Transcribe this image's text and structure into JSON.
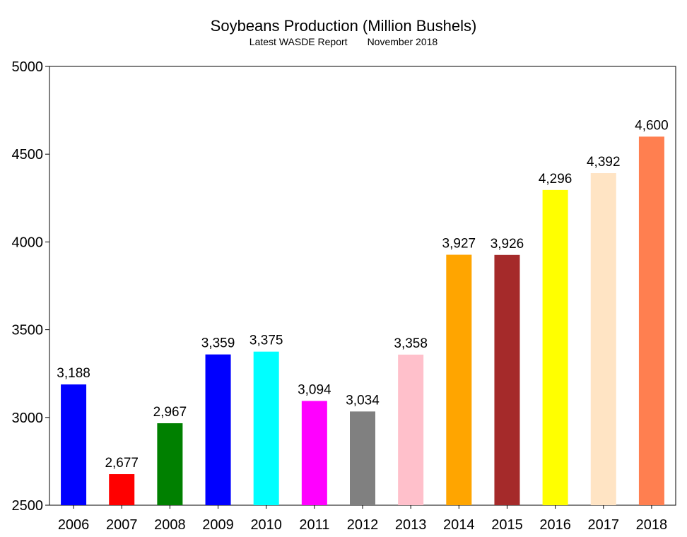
{
  "chart_data": {
    "type": "bar",
    "title": "Soybeans Production (Million Bushels)",
    "subtitle_left": "Latest WASDE Report",
    "subtitle_right": "November 2018",
    "xlabel": "",
    "ylabel": "",
    "ylim": [
      2500,
      5000
    ],
    "yticks": [
      2500,
      3000,
      3500,
      4000,
      4500,
      5000
    ],
    "grid": false,
    "categories": [
      "2006",
      "2007",
      "2008",
      "2009",
      "2010",
      "2011",
      "2012",
      "2013",
      "2014",
      "2015",
      "2016",
      "2017",
      "2018"
    ],
    "values": [
      3188,
      2677,
      2967,
      3359,
      3375,
      3094,
      3034,
      3358,
      3927,
      3926,
      4296,
      4392,
      4600
    ],
    "value_labels": [
      "3,188",
      "2,677",
      "2,967",
      "3,359",
      "3,375",
      "3,094",
      "3,034",
      "3,358",
      "3,927",
      "3,926",
      "4,296",
      "4,392",
      "4,600"
    ],
    "colors": [
      "#0000FF",
      "#FF0000",
      "#008000",
      "#0000FF",
      "#00FFFF",
      "#FF00FF",
      "#808080",
      "#FFC0CB",
      "#FFA500",
      "#A52A2A",
      "#FFFF00",
      "#FFE4C4",
      "#FF7F50"
    ]
  }
}
